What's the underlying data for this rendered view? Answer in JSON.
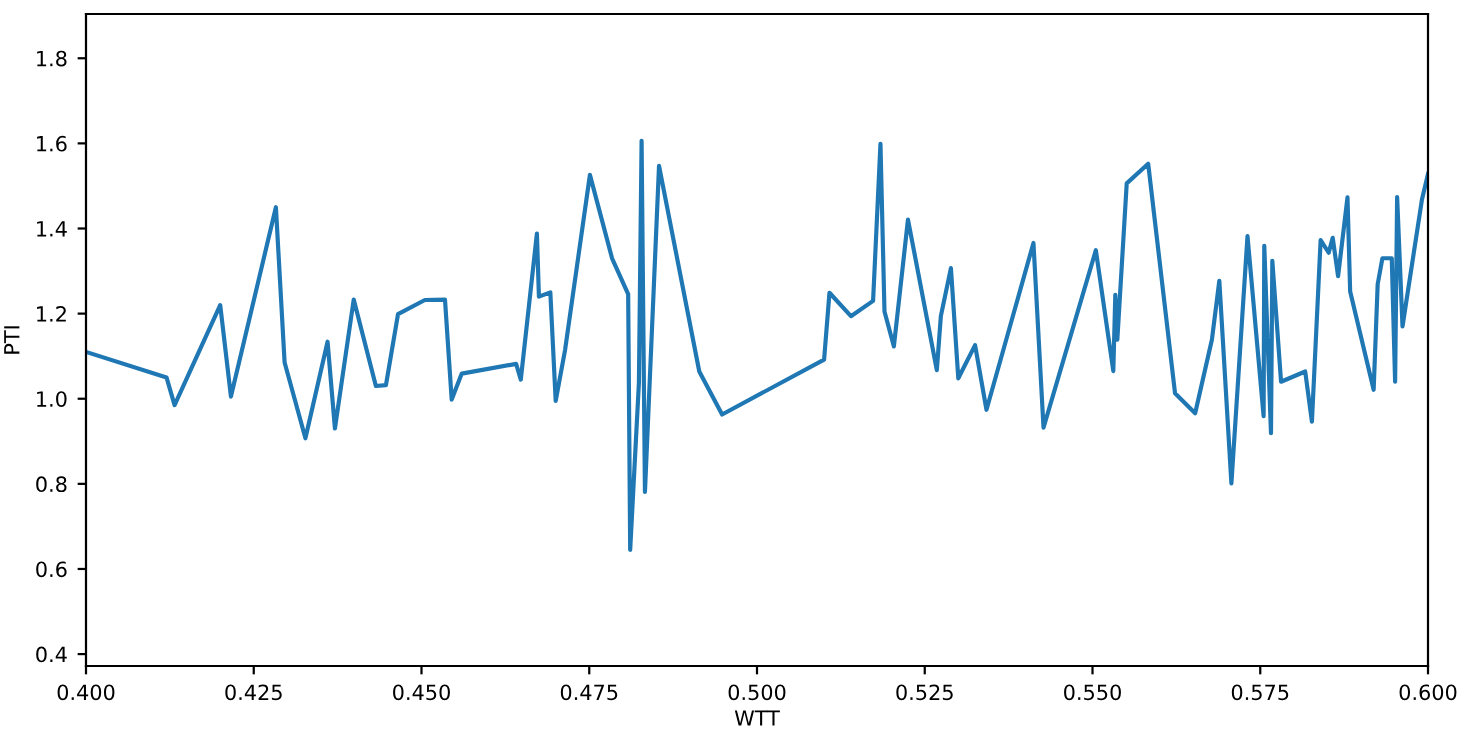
{
  "chart_data": {
    "type": "line",
    "xlabel": "WTT",
    "ylabel": "PTI",
    "color": "#1f77b4",
    "x": [
      0.4,
      0.412,
      0.4132,
      0.42,
      0.4216,
      0.4283,
      0.4296,
      0.4327,
      0.436,
      0.4371,
      0.4399,
      0.4432,
      0.4447,
      0.4465,
      0.4505,
      0.4535,
      0.4545,
      0.456,
      0.4641,
      0.4648,
      0.4672,
      0.4675,
      0.4692,
      0.47,
      0.4714,
      0.4751,
      0.4784,
      0.4808,
      0.4811,
      0.4824,
      0.4828,
      0.4833,
      0.4854,
      0.4914,
      0.4948,
      0.51,
      0.5108,
      0.514,
      0.5173,
      0.5184,
      0.519,
      0.5204,
      0.5225,
      0.5268,
      0.5274,
      0.5289,
      0.53,
      0.5325,
      0.5342,
      0.5412,
      0.5427,
      0.5505,
      0.5531,
      0.5534,
      0.5537,
      0.5551,
      0.5583,
      0.5623,
      0.5653,
      0.5678,
      0.5689,
      0.5707,
      0.5731,
      0.5755,
      0.5756,
      0.5766,
      0.5768,
      0.5781,
      0.5817,
      0.5827,
      0.584,
      0.5852,
      0.5858,
      0.5866,
      0.588,
      0.5884,
      0.5919,
      0.5925,
      0.5932,
      0.5946,
      0.5951,
      0.5954,
      0.5962,
      0.5991,
      0.6
    ],
    "values": [
      1.11,
      1.05,
      0.985,
      1.22,
      1.005,
      1.45,
      1.085,
      0.907,
      1.134,
      0.93,
      1.233,
      1.03,
      1.032,
      1.199,
      1.232,
      1.233,
      0.998,
      1.059,
      1.082,
      1.045,
      1.388,
      1.24,
      1.25,
      0.995,
      1.115,
      1.526,
      1.33,
      1.246,
      0.645,
      1.037,
      1.606,
      0.781,
      1.547,
      1.064,
      0.963,
      1.092,
      1.249,
      1.194,
      1.23,
      1.599,
      1.205,
      1.123,
      1.421,
      1.067,
      1.194,
      1.307,
      1.048,
      1.126,
      0.974,
      1.366,
      0.932,
      1.349,
      1.065,
      1.244,
      1.139,
      1.506,
      1.552,
      1.013,
      0.966,
      1.139,
      1.277,
      0.801,
      1.382,
      0.959,
      1.359,
      0.919,
      1.324,
      1.04,
      1.064,
      0.946,
      1.373,
      1.343,
      1.378,
      1.288,
      1.473,
      1.252,
      1.021,
      1.269,
      1.33,
      1.33,
      1.04,
      1.474,
      1.17,
      1.468,
      1.528
    ],
    "xlim": [
      0.4,
      0.6
    ],
    "ylim": [
      0.372,
      1.904
    ],
    "xticks": [
      {
        "value": 0.4,
        "label": "0.400"
      },
      {
        "value": 0.425,
        "label": "0.425"
      },
      {
        "value": 0.45,
        "label": "0.450"
      },
      {
        "value": 0.475,
        "label": "0.475"
      },
      {
        "value": 0.5,
        "label": "0.500"
      },
      {
        "value": 0.525,
        "label": "0.525"
      },
      {
        "value": 0.55,
        "label": "0.550"
      },
      {
        "value": 0.575,
        "label": "0.575"
      },
      {
        "value": 0.6,
        "label": "0.600"
      }
    ],
    "yticks": [
      0.4,
      0.6,
      0.8,
      {
        "value": 1.0,
        "label": "1.0"
      },
      1.2,
      1.4,
      1.6,
      1.8
    ],
    "grid": false,
    "marker": "none",
    "line_style": "solid"
  }
}
